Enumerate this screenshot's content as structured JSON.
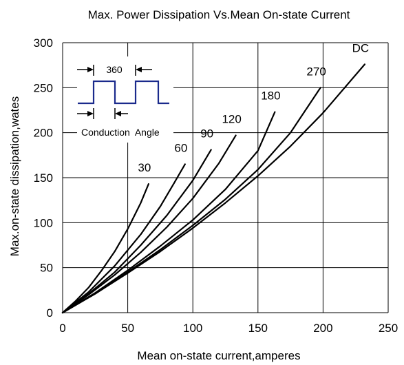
{
  "chart_data": {
    "type": "line",
    "title": "Max. Power Dissipation Vs.Mean On-state  Current",
    "xlabel": "Mean on-state current,amperes",
    "ylabel": "Max.on-state dissipation,wates",
    "xlim": [
      0,
      250
    ],
    "ylim": [
      0,
      300
    ],
    "xticks": [
      0,
      50,
      100,
      150,
      200,
      250
    ],
    "yticks": [
      0,
      50,
      100,
      150,
      200,
      250,
      300
    ],
    "grid": true,
    "legend": "none",
    "series": [
      {
        "name": "30",
        "x": [
          0,
          10,
          20,
          30,
          40,
          50,
          60,
          66
        ],
        "y": [
          0,
          13,
          28,
          47,
          68,
          93,
          122,
          143
        ]
      },
      {
        "name": "60",
        "x": [
          0,
          20,
          40,
          60,
          75,
          86,
          94
        ],
        "y": [
          0,
          23,
          52,
          87,
          118,
          145,
          165
        ]
      },
      {
        "name": "90",
        "x": [
          0,
          20,
          40,
          60,
          80,
          100,
          114
        ],
        "y": [
          0,
          21,
          45,
          75,
          108,
          147,
          181
        ]
      },
      {
        "name": "120",
        "x": [
          0,
          20,
          40,
          60,
          80,
          100,
          120,
          133
        ],
        "y": [
          0,
          20,
          42,
          67,
          95,
          127,
          166,
          197
        ]
      },
      {
        "name": "180",
        "x": [
          0,
          25,
          50,
          75,
          100,
          125,
          150,
          163
        ],
        "y": [
          0,
          22,
          47,
          74,
          103,
          137,
          180,
          223
        ]
      },
      {
        "name": "270",
        "x": [
          0,
          25,
          50,
          75,
          100,
          125,
          150,
          175,
          198
        ],
        "y": [
          0,
          21,
          45,
          70,
          97,
          126,
          159,
          200,
          250
        ]
      },
      {
        "name": "DC",
        "x": [
          0,
          25,
          50,
          75,
          100,
          125,
          150,
          175,
          200,
          232
        ],
        "y": [
          0,
          21,
          44,
          68,
          94,
          122,
          152,
          185,
          222,
          276
        ]
      }
    ],
    "inset": {
      "period_label": "360",
      "conduction_label": "Conduction  Angle",
      "line_color": "#1a2a8c"
    }
  }
}
